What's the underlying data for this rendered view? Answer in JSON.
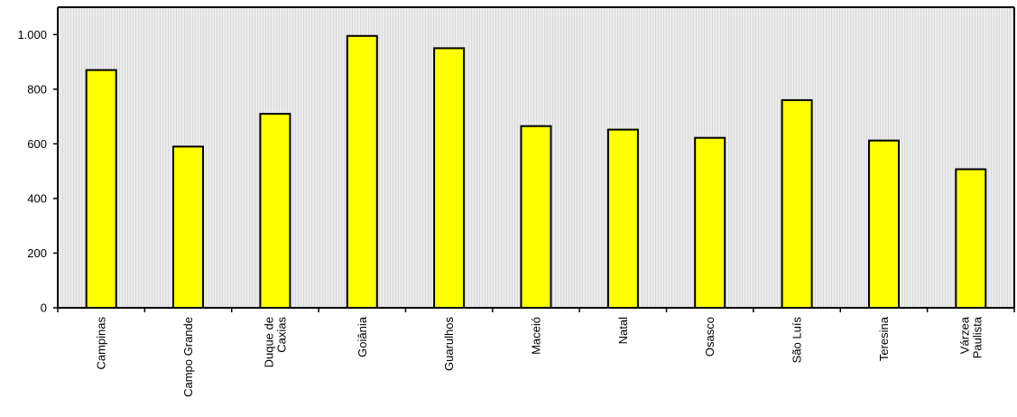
{
  "chart_data": {
    "type": "bar",
    "title": "",
    "xlabel": "",
    "ylabel": "",
    "categories": [
      [
        "Campinas"
      ],
      [
        "Campo Grande"
      ],
      [
        "Duque de",
        "Caxias"
      ],
      [
        "Goiânia"
      ],
      [
        "Guarulhos"
      ],
      [
        "Maceió"
      ],
      [
        "Natal"
      ],
      [
        "Osasco"
      ],
      [
        "São Luís"
      ],
      [
        "Teresina"
      ],
      [
        "Várzea",
        "Paulista"
      ]
    ],
    "values": [
      870,
      590,
      710,
      995,
      950,
      665,
      652,
      622,
      760,
      612,
      507
    ],
    "ylim": [
      0,
      1100
    ],
    "yticks": [
      0,
      200,
      400,
      600,
      800,
      1000
    ],
    "ytick_labels": [
      "0",
      "200",
      "400",
      "600",
      "800",
      "1.000"
    ],
    "grid": false,
    "legend": "none",
    "colors": {
      "bar_fill": "#ffff00",
      "bar_stroke": "#000000",
      "plot_background": "#e6e6e6",
      "axis": "#000000"
    }
  }
}
